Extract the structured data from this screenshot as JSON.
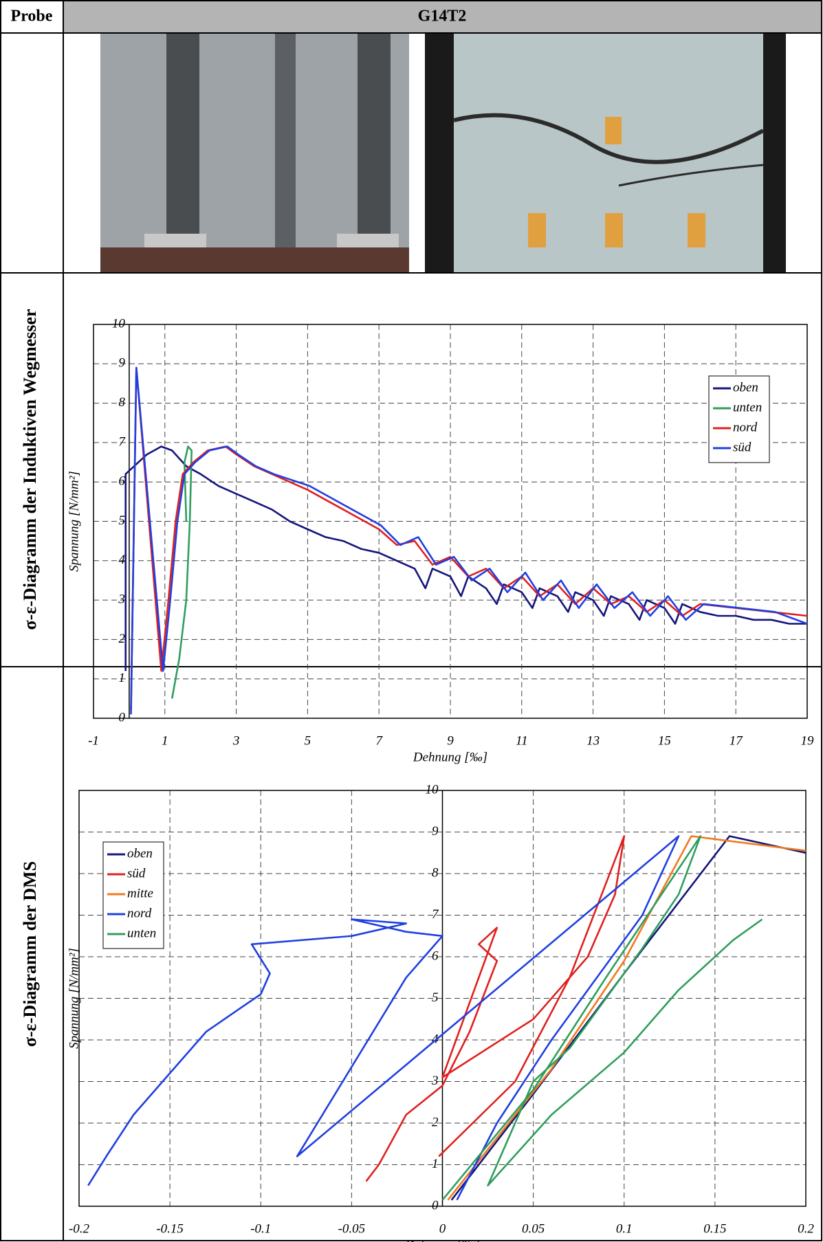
{
  "table": {
    "header": [
      "Probe",
      "G14T2"
    ],
    "row_labels": [
      "σ-ε-Diagramm der Induktiven Wegmesser",
      "σ-ε-Diagramm der DMS"
    ]
  },
  "chart_data": [
    {
      "type": "line",
      "x_label": "Dehnung [‰]",
      "y_label": "Spannung [N/mm²]",
      "xlim": [
        -1,
        19
      ],
      "xticks": [
        -1,
        1,
        3,
        5,
        7,
        9,
        11,
        13,
        15,
        17,
        19
      ],
      "ylim": [
        0,
        10
      ],
      "yticks": [
        0,
        1,
        2,
        3,
        4,
        5,
        6,
        7,
        8,
        9,
        10
      ],
      "grid": true,
      "legend": "upper right",
      "series": [
        {
          "name": "oben",
          "color": "#14147a",
          "x": [
            -0.1,
            -0.1,
            0.5,
            0.9,
            1.2,
            1.6,
            2,
            2.5,
            3,
            3.5,
            4,
            4.5,
            5,
            5.5,
            6,
            6.5,
            7,
            7.5,
            8,
            8.3,
            8.5,
            9,
            9.3,
            9.5,
            10,
            10.3,
            10.5,
            11,
            11.3,
            11.5,
            12,
            12.3,
            12.5,
            13,
            13.3,
            13.5,
            14,
            14.3,
            14.5,
            15,
            15.3,
            15.5,
            16,
            16.5,
            17,
            17.5,
            18,
            18.5,
            19
          ],
          "y": [
            1.2,
            6.2,
            6.7,
            6.9,
            6.8,
            6.4,
            6.2,
            5.9,
            5.7,
            5.5,
            5.3,
            5.0,
            4.8,
            4.6,
            4.5,
            4.3,
            4.2,
            4.0,
            3.8,
            3.3,
            3.8,
            3.6,
            3.1,
            3.6,
            3.3,
            2.9,
            3.4,
            3.2,
            2.8,
            3.3,
            3.1,
            2.7,
            3.2,
            3.0,
            2.6,
            3.1,
            2.9,
            2.5,
            3.0,
            2.8,
            2.4,
            2.9,
            2.7,
            2.6,
            2.6,
            2.5,
            2.5,
            2.4,
            2.4
          ]
        },
        {
          "name": "unten",
          "color": "#2e9e5e",
          "x": [
            1.2,
            1.4,
            1.6,
            1.7,
            1.75,
            1.65,
            1.55,
            1.6
          ],
          "y": [
            0.5,
            1.5,
            3,
            5,
            6.8,
            6.9,
            6.5,
            5
          ]
        },
        {
          "name": "nord",
          "color": "#e0201e",
          "x": [
            0.05,
            0.2,
            0.9,
            1.1,
            1.3,
            1.5,
            1.8,
            2.2,
            2.7,
            3,
            3.5,
            4,
            5,
            6,
            7,
            7.5,
            8,
            8.5,
            9,
            9.5,
            10,
            10.5,
            11,
            11.5,
            12,
            12.5,
            13,
            13.5,
            14,
            14.5,
            15,
            15.5,
            16,
            17,
            18,
            19
          ],
          "y": [
            0.2,
            8.9,
            1.2,
            3,
            5,
            6.2,
            6.5,
            6.8,
            6.9,
            6.7,
            6.4,
            6.2,
            5.8,
            5.3,
            4.8,
            4.4,
            4.5,
            3.9,
            4.1,
            3.6,
            3.8,
            3.3,
            3.6,
            3.1,
            3.4,
            2.9,
            3.3,
            2.9,
            3.1,
            2.7,
            3.0,
            2.6,
            2.9,
            2.8,
            2.7,
            2.6
          ]
        },
        {
          "name": "süd",
          "color": "#1f3fe0",
          "x": [
            0.05,
            0.2,
            0.95,
            1.15,
            1.35,
            1.55,
            1.85,
            2.25,
            2.75,
            3.05,
            3.55,
            4.05,
            5.05,
            6.05,
            7.05,
            7.6,
            8.1,
            8.6,
            9.1,
            9.6,
            10.1,
            10.6,
            11.1,
            11.6,
            12.1,
            12.6,
            13.1,
            13.6,
            14.1,
            14.6,
            15.1,
            15.6,
            16.1,
            17.1,
            18.1,
            19
          ],
          "y": [
            0.1,
            8.9,
            1.2,
            3,
            5,
            6.2,
            6.5,
            6.8,
            6.9,
            6.7,
            6.4,
            6.2,
            5.9,
            5.4,
            4.9,
            4.4,
            4.6,
            3.9,
            4.1,
            3.5,
            3.8,
            3.2,
            3.7,
            3.0,
            3.5,
            2.8,
            3.4,
            2.8,
            3.2,
            2.6,
            3.1,
            2.5,
            2.9,
            2.8,
            2.7,
            2.4
          ]
        }
      ]
    },
    {
      "type": "line",
      "x_label": "Dehnung [‰]",
      "y_label": "Spannung [N/mm²]",
      "xlim": [
        -0.2,
        0.2
      ],
      "xticks": [
        -0.2,
        -0.15,
        -0.1,
        -0.05,
        0,
        0.05,
        0.1,
        0.15,
        0.2
      ],
      "ylim": [
        0,
        10
      ],
      "yticks": [
        0,
        1,
        2,
        3,
        4,
        5,
        6,
        7,
        8,
        9,
        10
      ],
      "grid": true,
      "legend": "upper left",
      "series": [
        {
          "name": "oben",
          "color": "#14147a",
          "x": [
            0.005,
            0.05,
            0.1,
            0.158,
            0.2
          ],
          "y": [
            0.15,
            2.7,
            5.6,
            8.9,
            8.5
          ]
        },
        {
          "name": "süd",
          "color": "#e0201e",
          "x": [
            -0.002,
            0.04,
            0.07,
            0.1,
            0.095,
            0.08,
            0.05,
            0.0,
            0.02,
            0.03,
            0.02,
            0.03,
            0.015,
            0.0,
            -0.02,
            -0.035,
            -0.042
          ],
          "y": [
            1.2,
            3,
            5.5,
            8.9,
            7.5,
            6.0,
            4.5,
            3.1,
            5.5,
            6.7,
            6.3,
            5.9,
            4.2,
            2.9,
            2.2,
            1.0,
            0.6
          ]
        },
        {
          "name": "mitte",
          "color": "#f07a20",
          "x": [
            0.003,
            0.06,
            0.1,
            0.137,
            0.2
          ],
          "y": [
            0.15,
            3.3,
            5.9,
            8.9,
            8.55
          ]
        },
        {
          "name": "nord",
          "color": "#1f3fe0",
          "x": [
            0.008,
            0.03,
            0.06,
            0.09,
            0.11,
            0.13,
            -0.08,
            -0.02,
            0.0,
            -0.02,
            -0.05,
            -0.02,
            -0.05,
            -0.105,
            -0.095,
            -0.1,
            -0.11,
            -0.13,
            -0.15,
            -0.17,
            -0.185,
            -0.195
          ],
          "y": [
            0.15,
            2,
            4,
            5.8,
            7,
            8.9,
            1.2,
            5.5,
            6.5,
            6.6,
            6.9,
            6.8,
            6.5,
            6.3,
            5.6,
            5.1,
            4.8,
            4.2,
            3.2,
            2.2,
            1.2,
            0.5
          ]
        },
        {
          "name": "unten",
          "color": "#2e9e5e",
          "x": [
            0.0,
            0.05,
            0.09,
            0.142,
            0.13,
            0.11,
            0.09,
            0.07,
            0.05,
            0.025,
            0.06,
            0.1,
            0.13,
            0.16,
            0.176
          ],
          "y": [
            0.15,
            2.8,
            5.5,
            8.9,
            7.5,
            6.2,
            5.0,
            3.8,
            3.0,
            0.5,
            2.2,
            3.7,
            5.2,
            6.4,
            6.9
          ]
        }
      ]
    }
  ]
}
